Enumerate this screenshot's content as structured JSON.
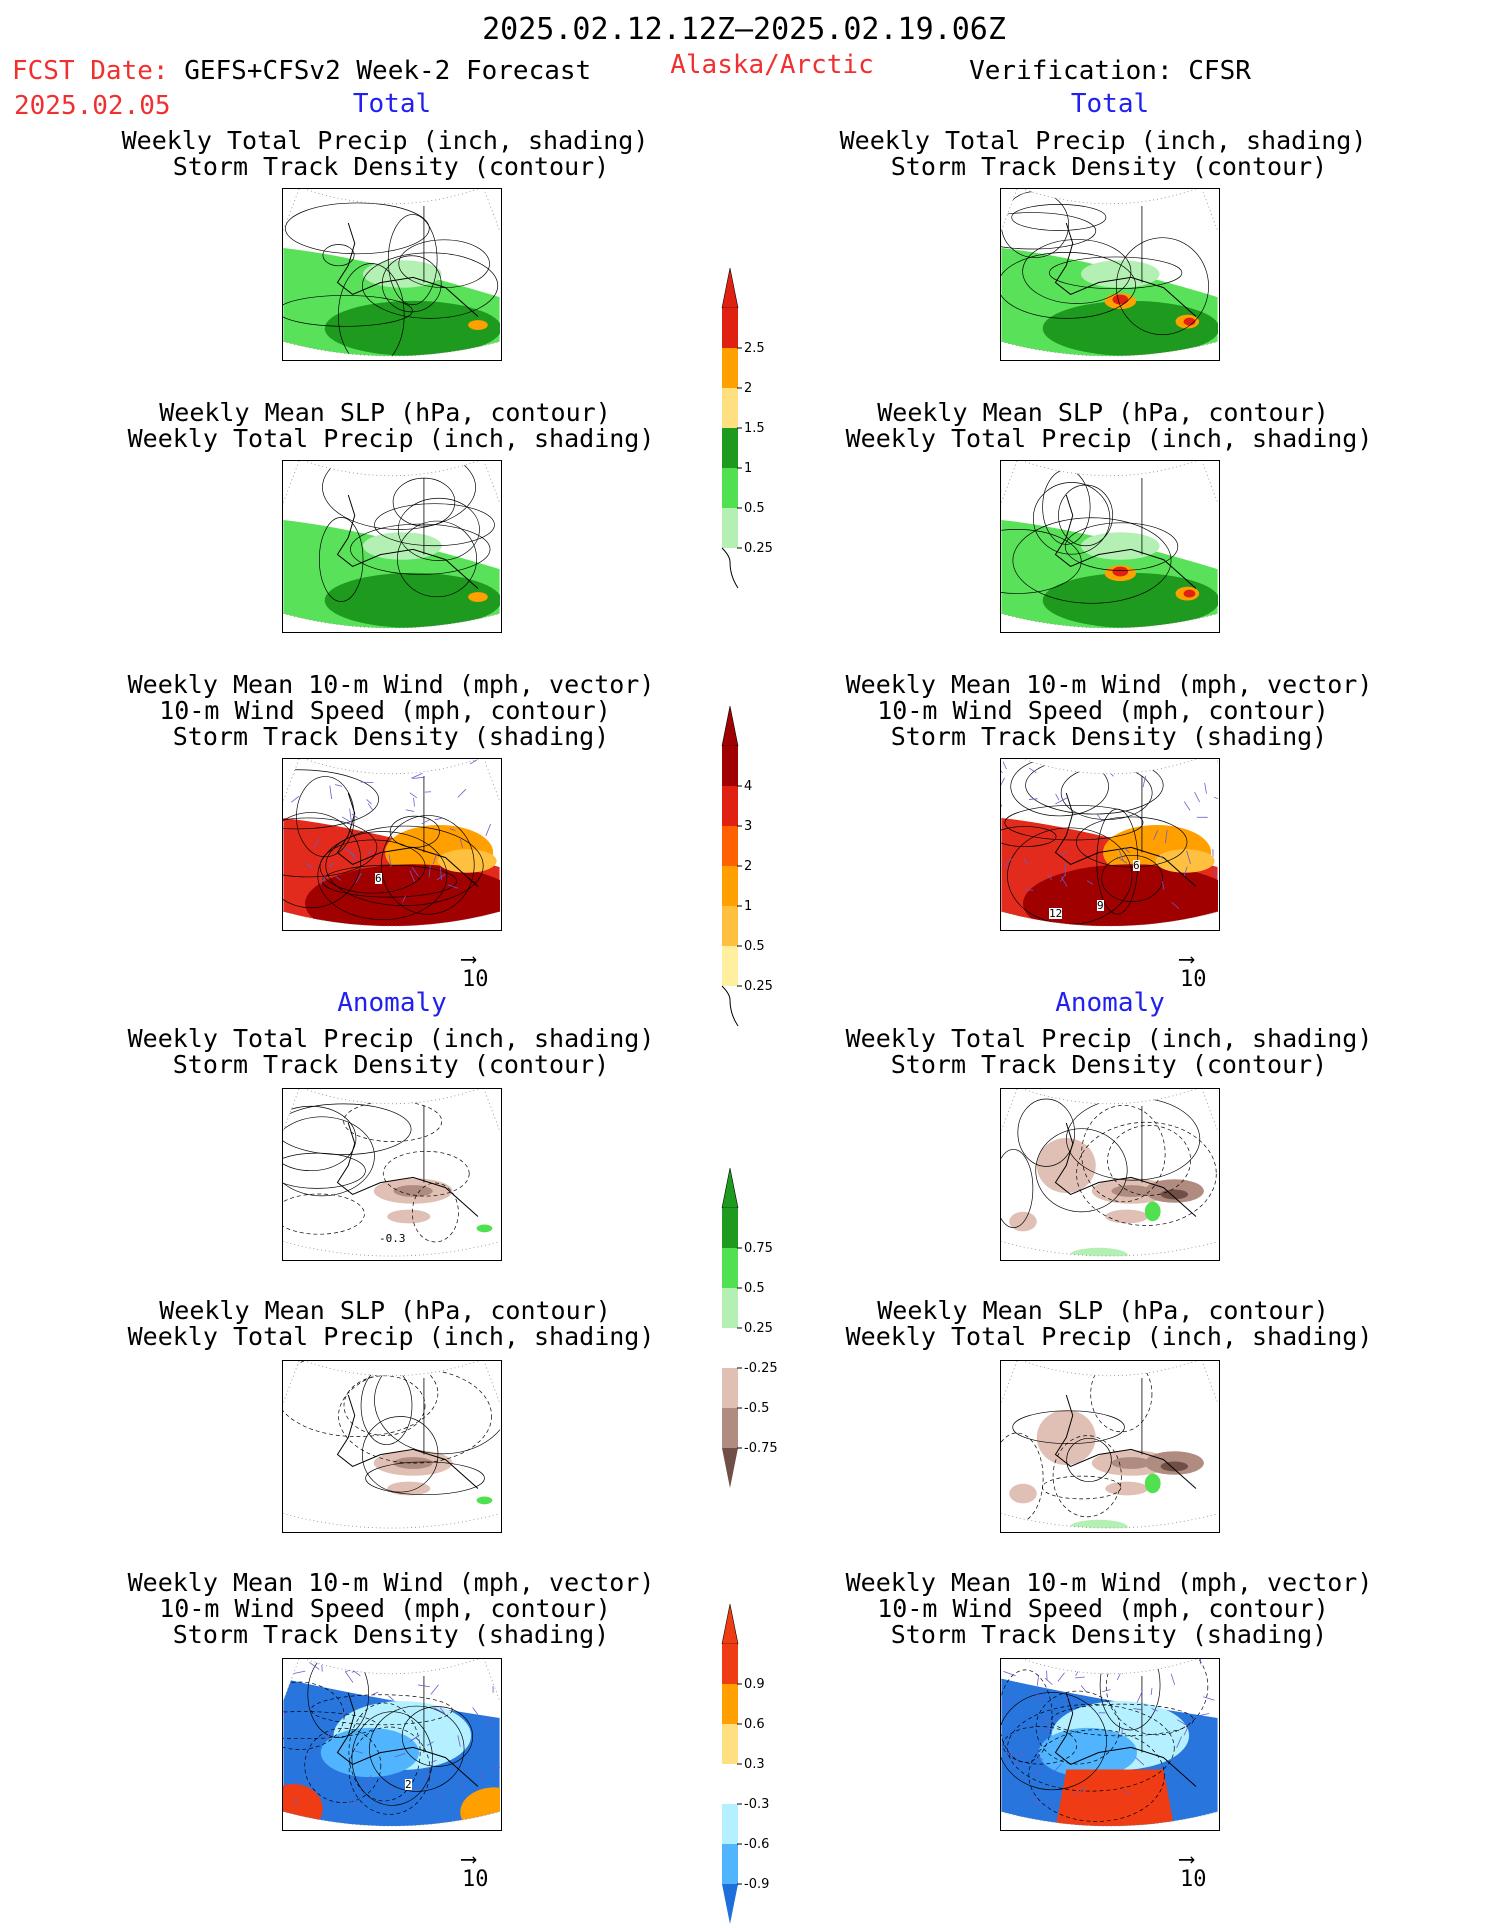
{
  "header": {
    "date_range": "2025.02.12.12Z–2025.02.19.06Z",
    "fcst_label": "FCST Date:",
    "product": "GEFS+CFSv2 Week-2 Forecast",
    "fcst_date": "2025.02.05",
    "region": "Alaska/Arctic",
    "verification": "Verification: CFSR"
  },
  "sections": {
    "total": "Total",
    "anomaly": "Anomaly"
  },
  "titles": {
    "precip_storm": [
      "Weekly Total Precip (inch, shading)",
      "Storm Track Density (contour)"
    ],
    "slp_precip": [
      "Weekly Mean SLP (hPa, contour)",
      "Weekly Total Precip (inch, shading)"
    ],
    "wind_storm": [
      "Weekly Mean 10-m Wind (mph, vector)",
      "10-m Wind Speed (mph, contour)",
      "Storm Track Density (shading)"
    ]
  },
  "vector_ref": "10",
  "map_labels": {
    "fc_wind_total": "6",
    "vf_wind_total_a": "12",
    "vf_wind_total_b": "9",
    "vf_wind_total_c": "6",
    "fc_precip_anom": "-0.3",
    "fc_wind_anom": "2"
  },
  "colorbars": {
    "precip_total": {
      "labels": [
        "2.5",
        "2",
        "1.5",
        "1",
        "0.5",
        "0.25"
      ],
      "colors": [
        "#e02010",
        "#ffa000",
        "#ffe080",
        "#1e9a1e",
        "#50e050",
        "#b4f0b4"
      ]
    },
    "storm_total": {
      "labels": [
        "4",
        "3",
        "2",
        "1",
        "0.5",
        "0.25"
      ],
      "colors": [
        "#a00000",
        "#e02010",
        "#ff6000",
        "#ffa000",
        "#ffc040",
        "#fff0a0"
      ]
    },
    "precip_anom": {
      "labels": [
        "0.75",
        "0.5",
        "0.25",
        "-0.25",
        "-0.5",
        "-0.75"
      ],
      "colors": [
        "#1e9a1e",
        "#50e050",
        "#b4f0b4",
        "#ffffff",
        "#e0c0b4",
        "#b08c80",
        "#705046"
      ]
    },
    "storm_anom": {
      "labels": [
        "0.9",
        "0.6",
        "0.3",
        "-0.3",
        "-0.6",
        "-0.9"
      ],
      "colors": [
        "#f03c14",
        "#ffa000",
        "#ffe080",
        "#ffffff",
        "#b4f0ff",
        "#50b4ff",
        "#1e6edc"
      ]
    }
  },
  "colors": {
    "title_red": "#f03030",
    "title_blue": "#2020f0"
  }
}
